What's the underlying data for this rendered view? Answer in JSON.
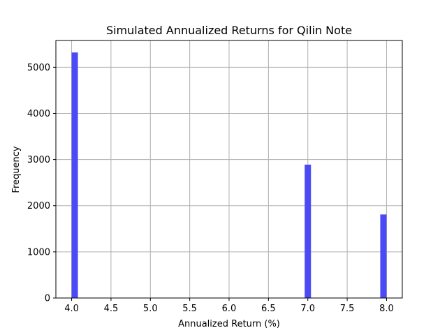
{
  "chart_data": {
    "type": "bar",
    "title": "Simulated Annualized Returns for Qilin Note",
    "xlabel": "Annualized Return (%)",
    "ylabel": "Frequency",
    "xlim": [
      3.8,
      8.2
    ],
    "ylim": [
      0,
      5580
    ],
    "x_ticks": [
      "4.0",
      "4.5",
      "5.0",
      "5.5",
      "6.0",
      "6.5",
      "7.0",
      "7.5",
      "8.0"
    ],
    "y_ticks": [
      "0",
      "1000",
      "2000",
      "3000",
      "4000",
      "5000"
    ],
    "grid": true,
    "bin_width": 0.08,
    "bars": [
      {
        "x_start": 4.0,
        "value": 5320
      },
      {
        "x_start": 6.96,
        "value": 2890
      },
      {
        "x_start": 7.92,
        "value": 1810
      }
    ],
    "colors": {
      "bar": "#4b4bf5",
      "grid": "#b0b0b0",
      "axis": "#000000"
    }
  }
}
